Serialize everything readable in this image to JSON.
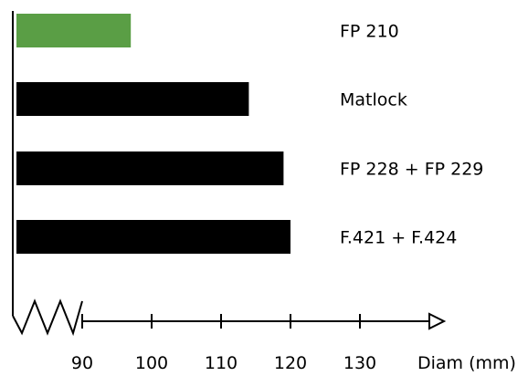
{
  "chart_data": {
    "type": "bar",
    "orientation": "horizontal",
    "categories": [
      "FP 210",
      "Matlock",
      "FP 228 + FP 229",
      "F.421 + F.424"
    ],
    "values": [
      97,
      114,
      119,
      120
    ],
    "colors": [
      "#5a9e45",
      "#000000",
      "#000000",
      "#000000"
    ],
    "title": "",
    "xlabel": "Diam (mm)",
    "ylabel": "",
    "xlim": [
      90,
      130
    ],
    "xticks": [
      90,
      100,
      110,
      120,
      130
    ],
    "tick_labels": [
      "90",
      "100",
      "110",
      "120",
      "130"
    ],
    "axis_break": true,
    "grid": false,
    "legend": "none"
  }
}
